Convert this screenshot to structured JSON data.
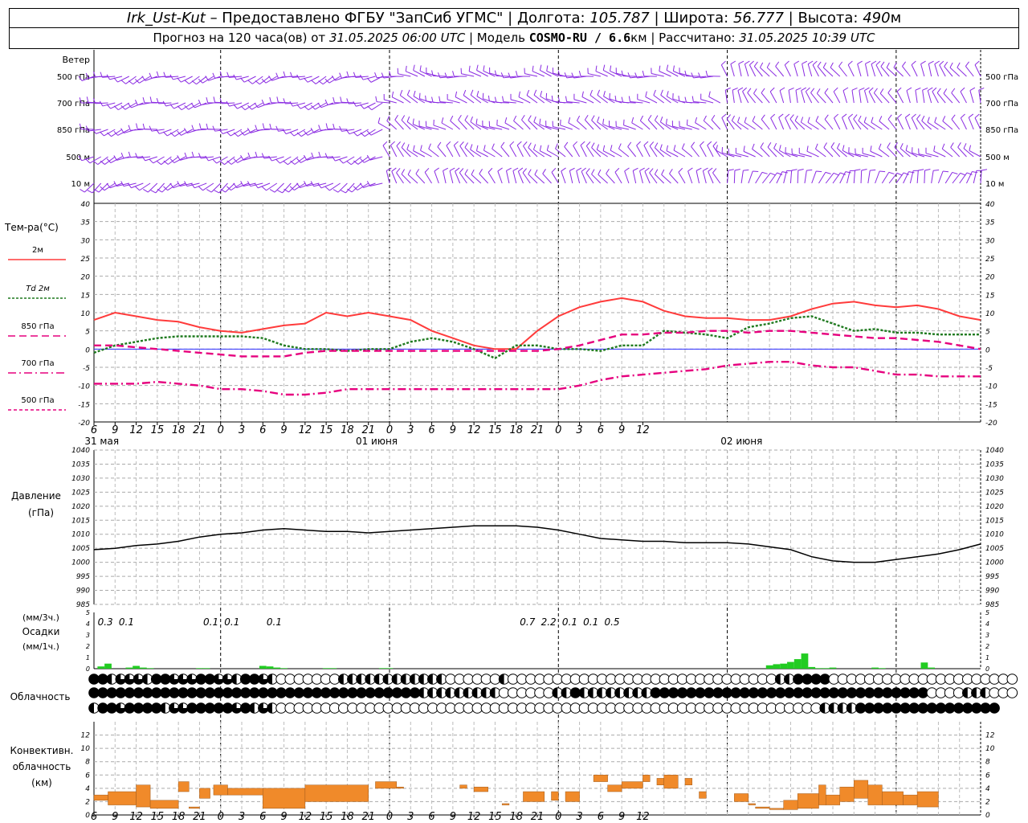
{
  "header": {
    "station": "Irk_Ust-Kut",
    "provider": " – Предоставлено ФГБУ \"ЗапСиб УГМС\" | Долгота: ",
    "lon": "105.787",
    "lat_label": " | Широта: ",
    "lat": "56.777",
    "alt_label": " | Высота: ",
    "alt": "490",
    "alt_unit": "м",
    "forecast_label": "Прогноз на 120 часа(ов) от ",
    "run_time": "31.05.2025 06:00 UTC",
    "model_label": " | Модель ",
    "model": "COSMO-RU / 6.6",
    "model_unit": "км",
    "calc_label": " | Рассчитано: ",
    "calc_time": "31.05.2025 10:39 UTC"
  },
  "colors": {
    "t2m": "#ff3b3b",
    "td2m": "#1f7a1f",
    "t850": "#e6007e",
    "t700": "#e6007e",
    "t500": "#e6007e",
    "wind": "#8a2be2",
    "precip": "#22cc22",
    "conv": "#f08a2a",
    "pressure": "#000000"
  },
  "chart_data": [
    {
      "type": "wind_barbs",
      "title": "Ветер",
      "levels": [
        "500 гПа",
        "700 гПа",
        "850 гПа",
        "500 м",
        "10 м"
      ],
      "directions_deg_by_day": {
        "31 мая": [
          250,
          255,
          255,
          250,
          240
        ],
        "01 июня": [
          280,
          290,
          300,
          315,
          330
        ],
        "02 июня": [
          330,
          335,
          320,
          300,
          20
        ]
      }
    },
    {
      "type": "line",
      "title": "Тем-ра(°C)",
      "x_ticks": [
        "6",
        "9",
        "12",
        "15",
        "18",
        "21",
        "0",
        "3",
        "6",
        "9",
        "12",
        "15",
        "18",
        "21",
        "0",
        "3",
        "6",
        "9",
        "12",
        "15",
        "18",
        "21",
        "0",
        "3",
        "6",
        "9",
        "12"
      ],
      "day_labels": [
        "31 мая",
        "01 июня",
        "02 июня"
      ],
      "ylim": [
        -20,
        40
      ],
      "yticks": [
        -20,
        -15,
        -10,
        -5,
        0,
        5,
        10,
        15,
        20,
        25,
        30,
        35,
        40
      ],
      "grid": true,
      "series": [
        {
          "name": "2м",
          "style": "solid",
          "hours": [
            0,
            3,
            6,
            9,
            12,
            15,
            18,
            21,
            24,
            27,
            30,
            33,
            36,
            39,
            42,
            45,
            48,
            51,
            54,
            57,
            60,
            63,
            66,
            69,
            72,
            75,
            78,
            81,
            84,
            87,
            90,
            93,
            96,
            99,
            102,
            105,
            108,
            111,
            114,
            117,
            120,
            123,
            126
          ],
          "values": [
            8,
            10,
            9,
            8,
            7.5,
            6,
            5,
            4.5,
            5.5,
            6.5,
            7,
            10,
            9,
            10,
            9,
            8,
            5,
            3,
            1,
            0,
            0,
            5,
            9,
            11.5,
            13,
            14,
            13,
            10.5,
            9,
            8.5,
            8.5,
            8,
            8,
            9,
            11,
            12.5,
            13,
            12,
            11.5,
            12,
            11,
            9,
            8
          ]
        },
        {
          "name": "Td 2м",
          "style": "dotted",
          "hours": [
            0,
            3,
            6,
            9,
            12,
            15,
            18,
            21,
            24,
            27,
            30,
            33,
            36,
            39,
            42,
            45,
            48,
            51,
            54,
            57,
            60,
            63,
            66,
            69,
            72,
            75,
            78,
            81,
            84,
            87,
            90,
            93,
            96,
            99,
            102,
            105,
            108,
            111,
            114,
            117,
            120,
            123,
            126
          ],
          "values": [
            -1,
            1,
            2,
            3,
            3.5,
            3.5,
            3.5,
            3.5,
            3,
            1,
            0,
            0,
            -0.5,
            0,
            0,
            2,
            3,
            2,
            0,
            -2.5,
            1,
            1,
            0,
            0,
            -0.5,
            1,
            1,
            5,
            4.5,
            4,
            3,
            6,
            7,
            8.5,
            9,
            7,
            5,
            5.5,
            4.5,
            4.5,
            4,
            4,
            4
          ]
        },
        {
          "name": "850 гПа",
          "style": "dashed",
          "hours": [
            0,
            3,
            6,
            9,
            12,
            15,
            18,
            21,
            24,
            27,
            30,
            33,
            36,
            39,
            42,
            45,
            48,
            51,
            54,
            57,
            60,
            63,
            66,
            69,
            72,
            75,
            78,
            81,
            84,
            87,
            90,
            93,
            96,
            99,
            102,
            105,
            108,
            111,
            114,
            117,
            120,
            123,
            126
          ],
          "values": [
            1,
            1,
            0.5,
            0,
            -0.5,
            -1,
            -1.5,
            -2,
            -2,
            -2,
            -1,
            -0.5,
            -0.5,
            -0.5,
            -0.5,
            -0.5,
            -0.5,
            -0.5,
            -0.5,
            -0.5,
            -0.5,
            -0.5,
            0,
            1,
            2.5,
            4,
            4,
            4.5,
            4.5,
            5,
            5,
            4.5,
            5,
            5,
            4.5,
            4,
            3.5,
            3,
            3,
            2.5,
            2,
            1,
            0
          ]
        },
        {
          "name": "700 гПа",
          "style": "dashdot",
          "hours": [
            0,
            3,
            6,
            9,
            12,
            15,
            18,
            21,
            24,
            27,
            30,
            33,
            36,
            39,
            42,
            45,
            48,
            51,
            54,
            57,
            60,
            63,
            66,
            69,
            72,
            75,
            78,
            81,
            84,
            87,
            90,
            93,
            96,
            99,
            102,
            105,
            108,
            111,
            114,
            117,
            120,
            123,
            126
          ],
          "values": [
            -9.5,
            -9.5,
            -9.5,
            -9,
            -9.5,
            -10,
            -11,
            -11,
            -11.5,
            -12.5,
            -12.5,
            -12,
            -11,
            -11,
            -11,
            -11,
            -11,
            -11,
            -11,
            -11,
            -11,
            -11,
            -11,
            -10,
            -8.5,
            -7.5,
            -7,
            -6.5,
            -6,
            -5.5,
            -4.5,
            -4,
            -3.5,
            -3.5,
            -4.5,
            -5,
            -5,
            -6,
            -7,
            -7,
            -7.5,
            -7.5,
            -7.5
          ]
        },
        {
          "name": "500 гПа",
          "style": "dashed",
          "hours": [],
          "values": []
        }
      ]
    },
    {
      "type": "line",
      "title": "Давление",
      "ylabel": "(гПа)",
      "ylim": [
        985,
        1040
      ],
      "yticks": [
        985,
        990,
        995,
        1000,
        1005,
        1010,
        1015,
        1020,
        1025,
        1030,
        1035,
        1040
      ],
      "grid": true,
      "hours": [
        0,
        3,
        6,
        9,
        12,
        15,
        18,
        21,
        24,
        27,
        30,
        33,
        36,
        39,
        42,
        45,
        48,
        51,
        54,
        57,
        60,
        63,
        66,
        69,
        72,
        75,
        78,
        81,
        84,
        87,
        90,
        93,
        96,
        99,
        102,
        105,
        108,
        111,
        114,
        117,
        120,
        123,
        126
      ],
      "values": [
        1004.5,
        1005,
        1006,
        1006.5,
        1007.5,
        1009,
        1010,
        1010.5,
        1011.5,
        1012,
        1011.5,
        1011,
        1011,
        1010.5,
        1011,
        1011.5,
        1012,
        1012.5,
        1013,
        1013,
        1013,
        1012.5,
        1011.5,
        1010,
        1008.5,
        1008,
        1007.5,
        1007.5,
        1007,
        1007,
        1007,
        1006.5,
        1005.5,
        1004.5,
        1002,
        1000.5,
        1000,
        1000,
        1001,
        1002,
        1003,
        1004.5,
        1006.5
      ]
    },
    {
      "type": "bar",
      "title": "Осадки",
      "ylabel_top": "(мм/3ч.)",
      "ylabel": "(мм/1ч.)",
      "ylim": [
        0,
        5
      ],
      "yticks": [
        0,
        1,
        2,
        3,
        4,
        5
      ],
      "hours": [
        1,
        2,
        5,
        6,
        7,
        8,
        15,
        16,
        24,
        25,
        26,
        27,
        33,
        34,
        41,
        42,
        96,
        97,
        98,
        99,
        100,
        101,
        102,
        103,
        104,
        105,
        111,
        112,
        118,
        119
      ],
      "values": [
        0.2,
        0.45,
        0.1,
        0.25,
        0.1,
        0.05,
        0.05,
        0.05,
        0.25,
        0.2,
        0.1,
        0.05,
        0.05,
        0.05,
        0.05,
        0.05,
        0.3,
        0.4,
        0.45,
        0.6,
        0.85,
        1.35,
        0.15,
        0.05,
        0.05,
        0.1,
        0.1,
        0.05,
        0.55,
        0.1
      ],
      "sum_labels": [
        {
          "hour": 1.5,
          "text": "0.3"
        },
        {
          "hour": 4.5,
          "text": "0.1"
        },
        {
          "hour": 16.5,
          "text": "0.1"
        },
        {
          "hour": 19.5,
          "text": "0.1"
        },
        {
          "hour": 25.5,
          "text": "0.1"
        },
        {
          "hour": 61.5,
          "text": "0.7"
        },
        {
          "hour": 64.5,
          "text": "2.2"
        },
        {
          "hour": 67.5,
          "text": "0.1"
        },
        {
          "hour": 70.5,
          "text": "0.1"
        },
        {
          "hour": 73.5,
          "text": "0.5"
        }
      ]
    },
    {
      "type": "table",
      "title": "Облачность",
      "rows": [
        "FFHQQQHFFQQQFFQQHFFQHEEEEEEEHHHHHHHHHHHHEEEEEEHEEEEEEEEEEEEEEEEEEEEEEEEEEEEEEHHFFFFEEEEEEEEEEEEEEEEEEEEE",
        "FFFFFFFFFFFFFFFFFFFFFFFFFFFFFFFFFFFFFHHHHHHHHHEEEEEEHHFHHHHHHHHFFFFFFFFFFFFFFFFFFFFFFFFFFFFFFFEEEEHHHEEE",
        "HFFQFFFFHQQFFFFFQFHQHEEEEEEEEEEEEEEEEEEEEEEEEEEEEEEEEEEEEEEEEEEEEEEEEEEEEEEEEEEEEEHHHHFFFFFFFFFFFFFFFF"
      ]
    },
    {
      "type": "bar",
      "title": "Конвективн. облачность",
      "ylabel": "(км)",
      "ylim": [
        0,
        14
      ],
      "yticks": [
        0,
        2,
        4,
        6,
        8,
        10,
        12
      ],
      "bars": [
        {
          "x0": 0,
          "x1": 2,
          "b": 2.2,
          "t": 3
        },
        {
          "x0": 2,
          "x1": 6,
          "b": 1.5,
          "t": 3.5
        },
        {
          "x0": 6,
          "x1": 8,
          "b": 1.2,
          "t": 4.5
        },
        {
          "x0": 8,
          "x1": 12,
          "b": 1,
          "t": 2.2
        },
        {
          "x0": 12,
          "x1": 13.5,
          "b": 3.5,
          "t": 5
        },
        {
          "x0": 13.5,
          "x1": 15,
          "b": 1,
          "t": 1.2
        },
        {
          "x0": 15,
          "x1": 16.5,
          "b": 2.5,
          "t": 4
        },
        {
          "x0": 17,
          "x1": 19,
          "b": 3,
          "t": 4.5
        },
        {
          "x0": 19,
          "x1": 24,
          "b": 3,
          "t": 4
        },
        {
          "x0": 24,
          "x1": 30,
          "b": 1,
          "t": 4
        },
        {
          "x0": 30,
          "x1": 39,
          "b": 2,
          "t": 4.5
        },
        {
          "x0": 40,
          "x1": 43,
          "b": 4,
          "t": 5
        },
        {
          "x0": 43,
          "x1": 44,
          "b": 4,
          "t": 4.2
        },
        {
          "x0": 52,
          "x1": 53,
          "b": 4,
          "t": 4.5
        },
        {
          "x0": 54,
          "x1": 56,
          "b": 3.5,
          "t": 4.2
        },
        {
          "x0": 58,
          "x1": 59,
          "b": 1.5,
          "t": 1.7
        },
        {
          "x0": 61,
          "x1": 64,
          "b": 2,
          "t": 3.5
        },
        {
          "x0": 65,
          "x1": 66,
          "b": 2.2,
          "t": 3.5
        },
        {
          "x0": 67,
          "x1": 69,
          "b": 2,
          "t": 3.5
        },
        {
          "x0": 71,
          "x1": 73,
          "b": 5,
          "t": 6
        },
        {
          "x0": 73,
          "x1": 75,
          "b": 3.5,
          "t": 4.5
        },
        {
          "x0": 75,
          "x1": 78,
          "b": 4,
          "t": 5
        },
        {
          "x0": 78,
          "x1": 79,
          "b": 5,
          "t": 6
        },
        {
          "x0": 80,
          "x1": 81,
          "b": 4.5,
          "t": 5.5
        },
        {
          "x0": 81,
          "x1": 83,
          "b": 4,
          "t": 6
        },
        {
          "x0": 84,
          "x1": 85,
          "b": 4.5,
          "t": 5.5
        },
        {
          "x0": 86,
          "x1": 87,
          "b": 2.5,
          "t": 3.5
        },
        {
          "x0": 91,
          "x1": 93,
          "b": 2,
          "t": 3.2
        },
        {
          "x0": 93,
          "x1": 94,
          "b": 1.5,
          "t": 1.7
        },
        {
          "x0": 94,
          "x1": 96,
          "b": 1,
          "t": 1.2
        },
        {
          "x0": 96,
          "x1": 98,
          "b": 0.8,
          "t": 1
        },
        {
          "x0": 98,
          "x1": 100,
          "b": 0.8,
          "t": 2.2
        },
        {
          "x0": 100,
          "x1": 103,
          "b": 1,
          "t": 3.2
        },
        {
          "x0": 103,
          "x1": 104,
          "b": 1.5,
          "t": 4.5
        },
        {
          "x0": 104,
          "x1": 106,
          "b": 1.5,
          "t": 3
        },
        {
          "x0": 106,
          "x1": 108,
          "b": 2,
          "t": 4.2
        },
        {
          "x0": 108,
          "x1": 110,
          "b": 2.5,
          "t": 5.2
        },
        {
          "x0": 110,
          "x1": 112,
          "b": 1.5,
          "t": 4.5
        },
        {
          "x0": 112,
          "x1": 115,
          "b": 1.5,
          "t": 3.5
        },
        {
          "x0": 115,
          "x1": 117,
          "b": 1.5,
          "t": 3
        },
        {
          "x0": 117,
          "x1": 120,
          "b": 1.2,
          "t": 3.5
        }
      ]
    }
  ]
}
